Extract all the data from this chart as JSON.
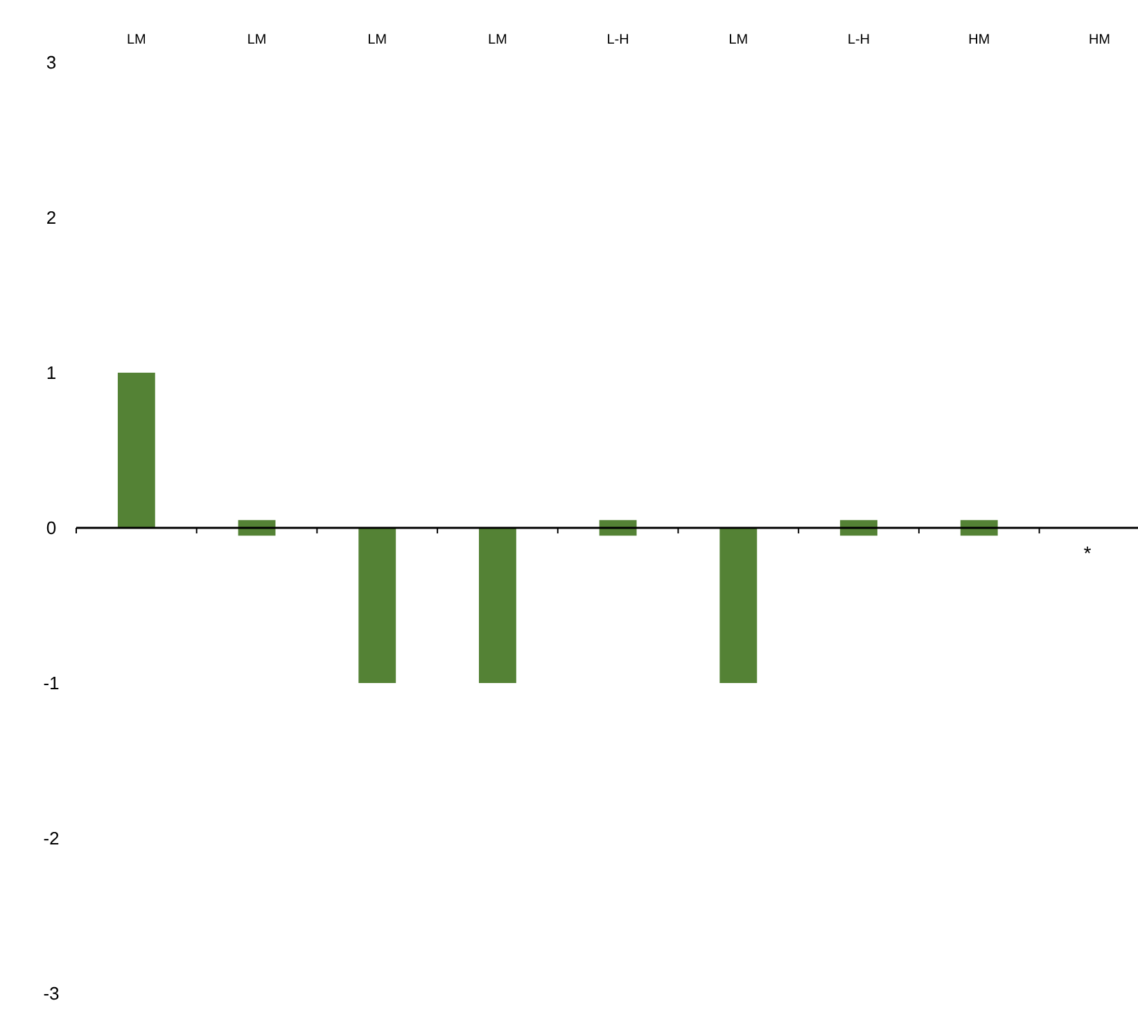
{
  "chart_data": {
    "type": "bar",
    "categories": [
      "LM",
      "LM",
      "LM",
      "LM",
      "L-H",
      "LM",
      "L-H",
      "HM",
      "HM"
    ],
    "values": [
      1,
      0.1,
      -1,
      -1,
      0.1,
      -1,
      0.1,
      0.1,
      null
    ],
    "base": [
      0,
      -0.05,
      0,
      0,
      -0.05,
      0,
      -0.05,
      -0.05,
      null
    ],
    "color": "#548235",
    "ylim": [
      -3,
      3
    ],
    "yticks": [
      -3,
      -2,
      -1,
      0,
      1,
      2,
      3
    ],
    "annotations": [
      "*"
    ]
  }
}
